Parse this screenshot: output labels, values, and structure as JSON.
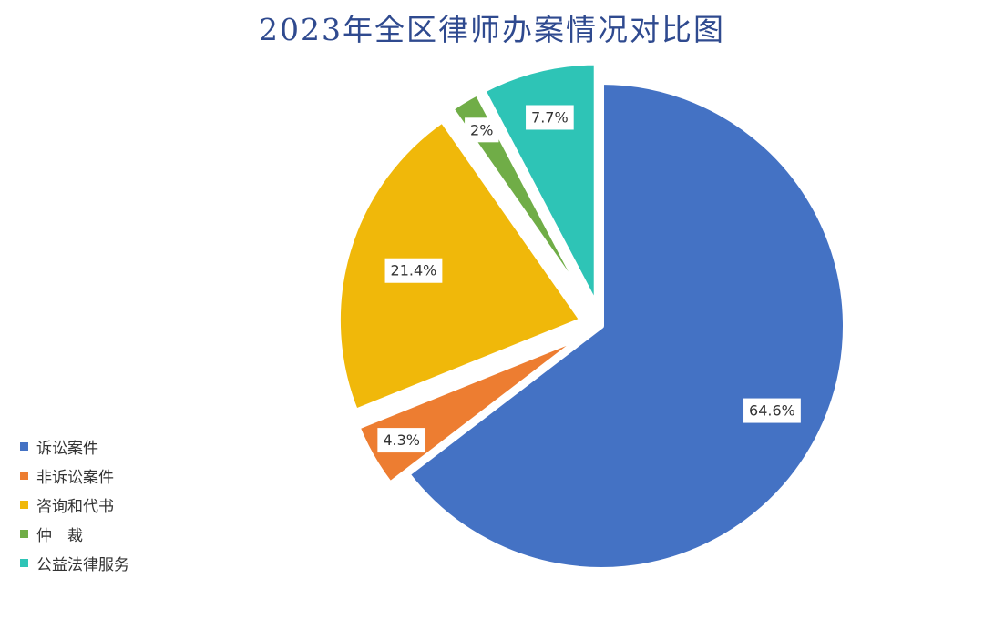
{
  "chart_data": {
    "type": "pie",
    "title": "2023年全区律师办案情况对比图",
    "slices": [
      {
        "name": "诉讼案件",
        "value": 64.6,
        "label": "64.6%",
        "color": "#4472c4",
        "exploded": false
      },
      {
        "name": "非诉讼案件",
        "value": 4.3,
        "label": "4.3%",
        "color": "#ed7d31",
        "exploded": true
      },
      {
        "name": "咨询和代书",
        "value": 21.4,
        "label": "21.4%",
        "color": "#f0b80a",
        "exploded": true
      },
      {
        "name": "仲　裁",
        "value": 2,
        "label": "2%",
        "color": "#70ad47",
        "exploded": true
      },
      {
        "name": "公益法律服务",
        "value": 7.7,
        "label": "7.7%",
        "color": "#2ec4b6",
        "exploded": true
      }
    ],
    "legend_position": "bottom-left",
    "start_angle": "12 o'clock, clockwise"
  }
}
